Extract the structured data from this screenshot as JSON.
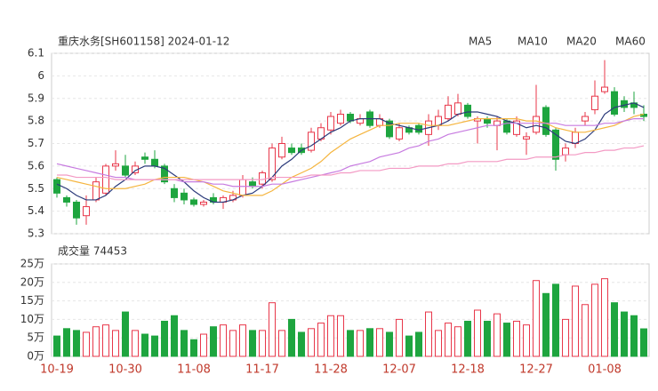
{
  "chart_data": [
    {
      "type": "candlestick",
      "title": "重庆水务[SH601158] 2024-01-12",
      "up_color": "#e8374a",
      "down_color": "#1ea53f",
      "open": [
        5.54,
        5.46,
        5.44,
        5.38,
        5.45,
        5.48,
        5.6,
        5.6,
        5.57,
        5.64,
        5.63,
        5.6,
        5.5,
        5.48,
        5.45,
        5.43,
        5.46,
        5.44,
        5.45,
        5.47,
        5.53,
        5.52,
        5.54,
        5.64,
        5.68,
        5.68,
        5.67,
        5.72,
        5.76,
        5.79,
        5.83,
        5.79,
        5.84,
        5.78,
        5.8,
        5.72,
        5.77,
        5.78,
        5.74,
        5.78,
        5.81,
        5.83,
        5.87,
        5.8,
        5.81,
        5.78,
        5.8,
        5.74,
        5.72,
        5.75,
        5.86,
        5.76,
        5.65,
        5.7,
        5.8,
        5.85,
        5.93,
        5.93,
        5.89,
        5.88,
        5.83
      ],
      "high": [
        5.55,
        5.47,
        5.45,
        5.47,
        5.55,
        5.61,
        5.67,
        5.65,
        5.62,
        5.66,
        5.67,
        5.61,
        5.52,
        5.5,
        5.46,
        5.45,
        5.48,
        5.47,
        5.49,
        5.56,
        5.55,
        5.58,
        5.7,
        5.73,
        5.7,
        5.7,
        5.77,
        5.79,
        5.84,
        5.85,
        5.84,
        5.83,
        5.85,
        5.83,
        5.81,
        5.79,
        5.78,
        5.79,
        5.83,
        5.85,
        5.91,
        5.92,
        5.88,
        5.82,
        5.82,
        5.82,
        5.81,
        5.82,
        5.75,
        5.96,
        5.87,
        5.77,
        5.7,
        5.77,
        5.84,
        5.98,
        6.07,
        5.95,
        5.91,
        5.93,
        5.87
      ],
      "low": [
        5.46,
        5.42,
        5.34,
        5.34,
        5.44,
        5.47,
        5.58,
        5.55,
        5.56,
        5.61,
        5.59,
        5.52,
        5.44,
        5.43,
        5.42,
        5.42,
        5.43,
        5.41,
        5.44,
        5.46,
        5.5,
        5.5,
        5.53,
        5.63,
        5.65,
        5.65,
        5.66,
        5.71,
        5.74,
        5.78,
        5.79,
        5.78,
        5.77,
        5.77,
        5.72,
        5.71,
        5.74,
        5.74,
        5.69,
        5.76,
        5.8,
        5.82,
        5.81,
        5.7,
        5.77,
        5.67,
        5.74,
        5.73,
        5.65,
        5.74,
        5.73,
        5.58,
        5.62,
        5.68,
        5.78,
        5.83,
        5.92,
        5.82,
        5.84,
        5.83,
        5.8
      ],
      "close": [
        5.48,
        5.44,
        5.37,
        5.42,
        5.53,
        5.6,
        5.61,
        5.56,
        5.6,
        5.63,
        5.6,
        5.53,
        5.46,
        5.45,
        5.43,
        5.44,
        5.44,
        5.46,
        5.47,
        5.54,
        5.51,
        5.57,
        5.68,
        5.7,
        5.66,
        5.66,
        5.75,
        5.77,
        5.82,
        5.83,
        5.8,
        5.81,
        5.78,
        5.81,
        5.73,
        5.77,
        5.75,
        5.75,
        5.8,
        5.82,
        5.87,
        5.88,
        5.82,
        5.81,
        5.79,
        5.8,
        5.75,
        5.8,
        5.73,
        5.82,
        5.74,
        5.63,
        5.68,
        5.75,
        5.82,
        5.91,
        5.95,
        5.83,
        5.86,
        5.86,
        5.82
      ],
      "series": [
        {
          "name": "MA5",
          "color": "#2b3a7a",
          "values": [
            5.52,
            5.5,
            5.47,
            5.45,
            5.45,
            5.47,
            5.51,
            5.54,
            5.58,
            5.6,
            5.6,
            5.59,
            5.56,
            5.53,
            5.49,
            5.46,
            5.44,
            5.44,
            5.45,
            5.47,
            5.48,
            5.51,
            5.55,
            5.6,
            5.63,
            5.67,
            5.69,
            5.72,
            5.75,
            5.77,
            5.8,
            5.81,
            5.81,
            5.81,
            5.79,
            5.78,
            5.77,
            5.76,
            5.77,
            5.78,
            5.8,
            5.83,
            5.84,
            5.84,
            5.83,
            5.82,
            5.8,
            5.79,
            5.77,
            5.78,
            5.77,
            5.74,
            5.71,
            5.7,
            5.72,
            5.76,
            5.83,
            5.86,
            5.87,
            5.88,
            5.86
          ]
        },
        {
          "name": "MA10",
          "color": "#f5b53f",
          "values": [
            5.55,
            5.54,
            5.53,
            5.52,
            5.51,
            5.5,
            5.5,
            5.5,
            5.51,
            5.52,
            5.54,
            5.55,
            5.55,
            5.55,
            5.54,
            5.53,
            5.51,
            5.49,
            5.48,
            5.47,
            5.47,
            5.47,
            5.49,
            5.52,
            5.55,
            5.57,
            5.59,
            5.62,
            5.66,
            5.69,
            5.72,
            5.74,
            5.76,
            5.78,
            5.78,
            5.79,
            5.79,
            5.79,
            5.78,
            5.78,
            5.78,
            5.79,
            5.8,
            5.81,
            5.81,
            5.81,
            5.81,
            5.81,
            5.8,
            5.8,
            5.79,
            5.77,
            5.76,
            5.75,
            5.75,
            5.76,
            5.77,
            5.78,
            5.8,
            5.82,
            5.83
          ]
        },
        {
          "name": "MA20",
          "color": "#c77be0",
          "values": [
            5.61,
            5.6,
            5.59,
            5.58,
            5.57,
            5.56,
            5.55,
            5.55,
            5.54,
            5.54,
            5.54,
            5.54,
            5.54,
            5.53,
            5.53,
            5.53,
            5.52,
            5.52,
            5.51,
            5.51,
            5.51,
            5.51,
            5.52,
            5.52,
            5.53,
            5.54,
            5.55,
            5.56,
            5.57,
            5.58,
            5.6,
            5.61,
            5.62,
            5.64,
            5.65,
            5.66,
            5.68,
            5.69,
            5.71,
            5.72,
            5.74,
            5.75,
            5.76,
            5.77,
            5.78,
            5.78,
            5.79,
            5.79,
            5.79,
            5.79,
            5.79,
            5.79,
            5.78,
            5.78,
            5.78,
            5.78,
            5.79,
            5.79,
            5.8,
            5.81,
            5.81
          ]
        },
        {
          "name": "MA60",
          "color": "#f39ac4",
          "values": [
            5.56,
            5.56,
            5.55,
            5.55,
            5.55,
            5.55,
            5.54,
            5.54,
            5.54,
            5.54,
            5.54,
            5.54,
            5.54,
            5.54,
            5.54,
            5.54,
            5.54,
            5.54,
            5.54,
            5.54,
            5.54,
            5.54,
            5.55,
            5.55,
            5.55,
            5.55,
            5.56,
            5.56,
            5.56,
            5.57,
            5.57,
            5.58,
            5.58,
            5.58,
            5.59,
            5.59,
            5.59,
            5.6,
            5.6,
            5.6,
            5.61,
            5.61,
            5.62,
            5.62,
            5.62,
            5.62,
            5.63,
            5.63,
            5.63,
            5.64,
            5.64,
            5.64,
            5.65,
            5.65,
            5.66,
            5.66,
            5.67,
            5.67,
            5.68,
            5.68,
            5.69
          ]
        }
      ],
      "ylim": [
        5.3,
        6.1
      ],
      "yticks": [
        6.1,
        6,
        5.9,
        5.8,
        5.7,
        5.6,
        5.5,
        5.4,
        5.3
      ],
      "grid": true
    },
    {
      "type": "bar",
      "title": "成交量 74453",
      "categories": [
        "10-19",
        null,
        null,
        null,
        null,
        null,
        null,
        "10-30",
        null,
        null,
        null,
        null,
        null,
        null,
        "11-08",
        null,
        null,
        null,
        null,
        null,
        null,
        "11-17",
        null,
        null,
        null,
        null,
        null,
        null,
        "11-28",
        null,
        null,
        null,
        null,
        null,
        null,
        "12-07",
        null,
        null,
        null,
        null,
        null,
        null,
        "12-18",
        null,
        null,
        null,
        null,
        null,
        null,
        "12-27",
        null,
        null,
        null,
        null,
        null,
        null,
        "01-08",
        null,
        null,
        null,
        null
      ],
      "values": [
        5.5,
        7.5,
        7,
        6.5,
        8,
        8.5,
        7,
        12,
        7,
        6,
        5.5,
        9.5,
        11,
        7,
        4.5,
        6,
        8,
        8.5,
        7,
        8.5,
        7,
        7,
        14.5,
        7,
        10,
        6.5,
        7.5,
        9,
        11,
        11,
        7,
        7,
        7.5,
        7.5,
        6.5,
        10,
        5.5,
        6.5,
        12,
        7,
        9,
        8,
        9.5,
        12.5,
        9.5,
        11.5,
        9,
        9.5,
        8.5,
        20.5,
        17,
        19.5,
        10,
        19,
        14,
        19.5,
        21,
        14.5,
        12,
        11,
        7.4453
      ],
      "ylim": [
        0,
        25
      ],
      "yticks": [
        {
          "value": 25,
          "label": "25万"
        },
        {
          "value": 20,
          "label": "20万"
        },
        {
          "value": 15,
          "label": "15万"
        },
        {
          "value": 10,
          "label": "10万"
        },
        {
          "value": 5,
          "label": "5万"
        },
        {
          "value": 0,
          "label": "0万"
        }
      ],
      "grid": true
    }
  ]
}
